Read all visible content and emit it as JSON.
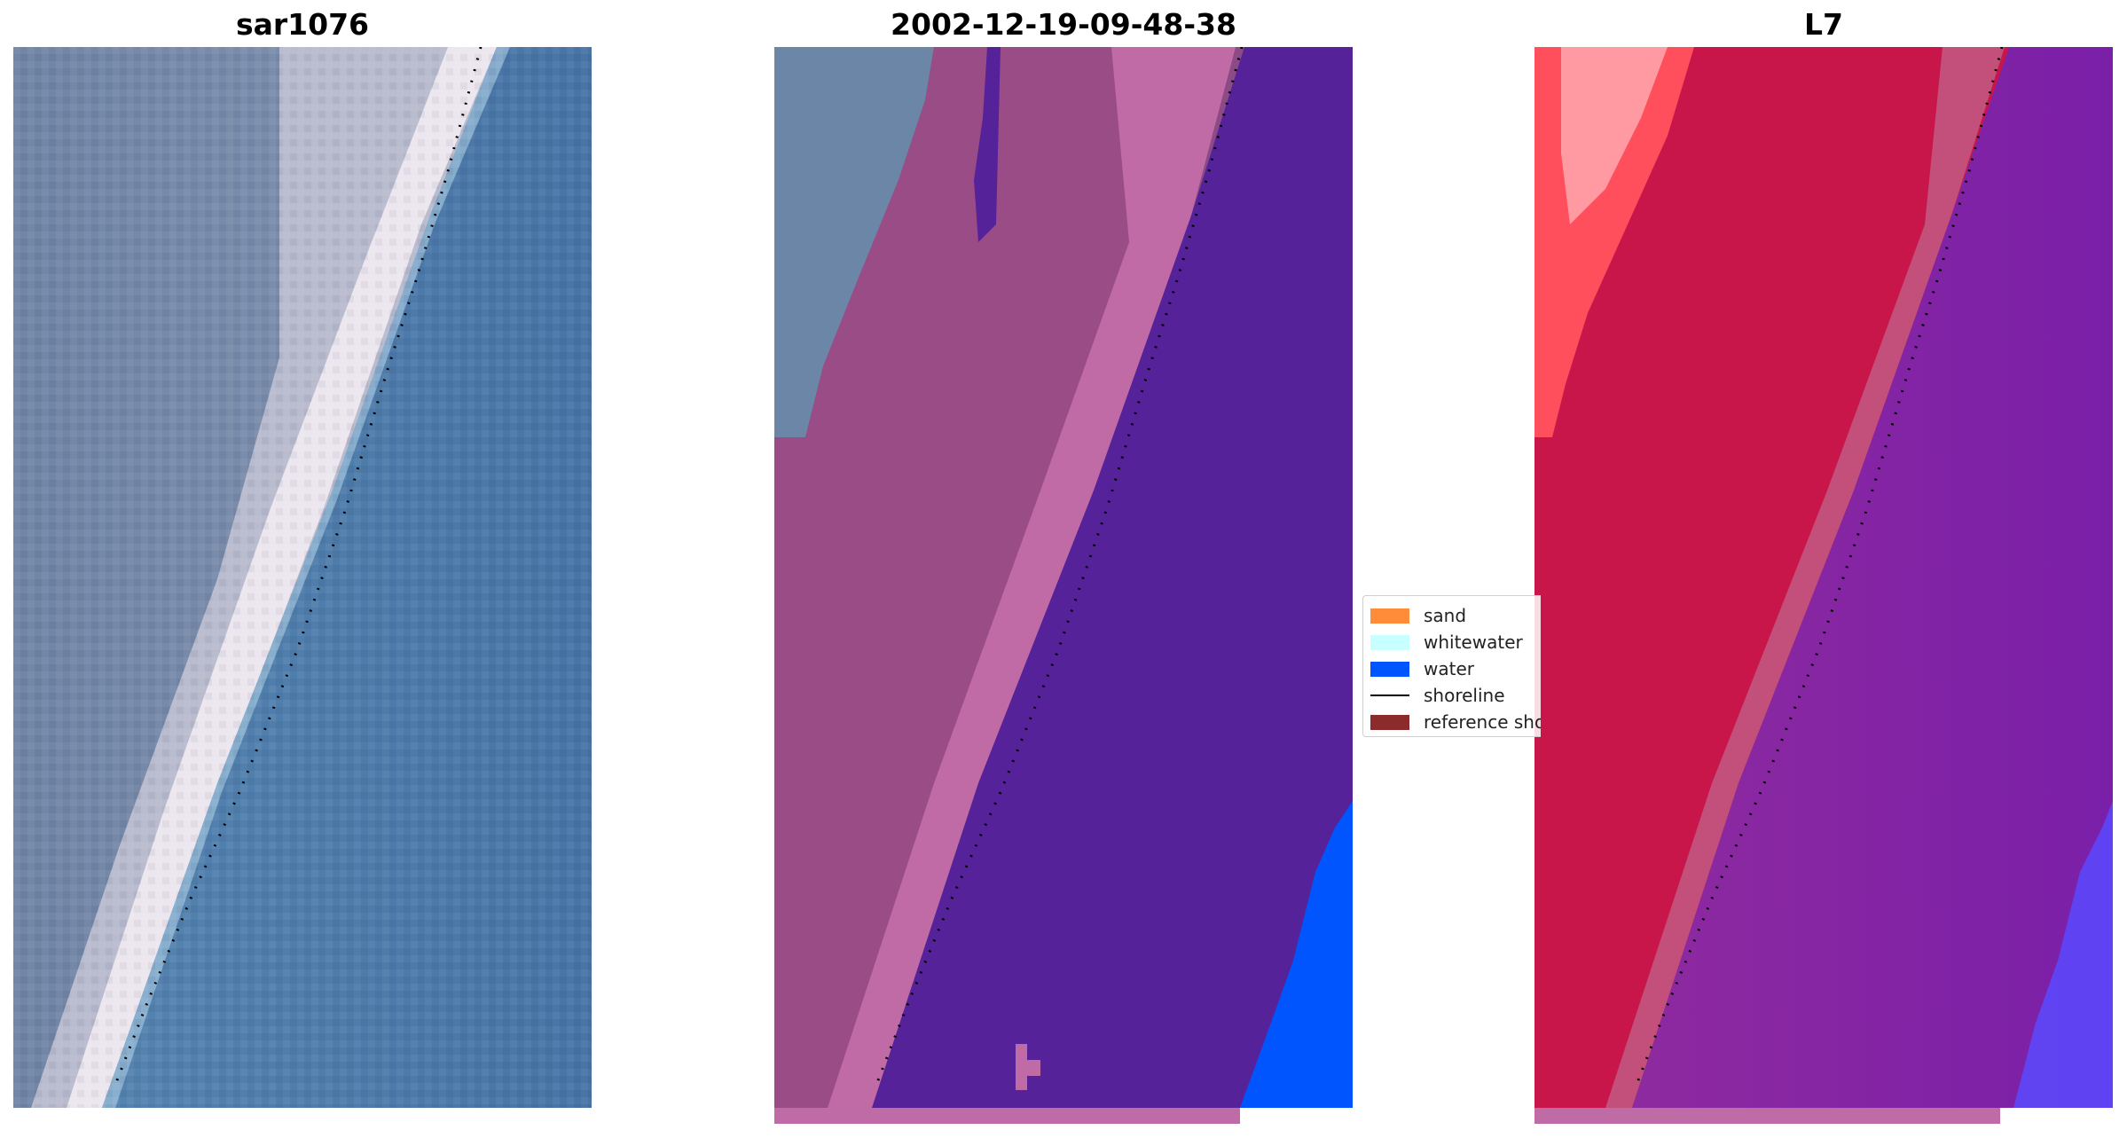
{
  "panels": [
    {
      "title": "sar1076",
      "kind": "rgb-image"
    },
    {
      "title": "2002-12-19-09-48-38",
      "kind": "classified-image"
    },
    {
      "title": "L7",
      "kind": "mndwi-image"
    }
  ],
  "legend": {
    "items": [
      {
        "label": "sand",
        "color": "#ff8c38",
        "type": "patch"
      },
      {
        "label": "whitewater",
        "color": "#c8ffff",
        "type": "patch"
      },
      {
        "label": "water",
        "color": "#0055ff",
        "type": "patch"
      },
      {
        "label": "shoreline",
        "color": "#000000",
        "type": "line"
      },
      {
        "label": "reference shoreline",
        "color": "#8b2b2b",
        "type": "patch"
      }
    ]
  },
  "colors": {
    "land_rgb": "#6e87a8",
    "beach_rgb": "#ece8ee",
    "sea_rgb": "#4a78aa",
    "classified_land": "#96467e",
    "classified_water_dark": "#55229a",
    "classified_water": "#0055ff",
    "mndwi_land": "#c8164a",
    "mndwi_sand": "#ff3a3a",
    "mndwi_water": "#7a1fa8",
    "mndwi_water_blue": "#5050ff"
  }
}
